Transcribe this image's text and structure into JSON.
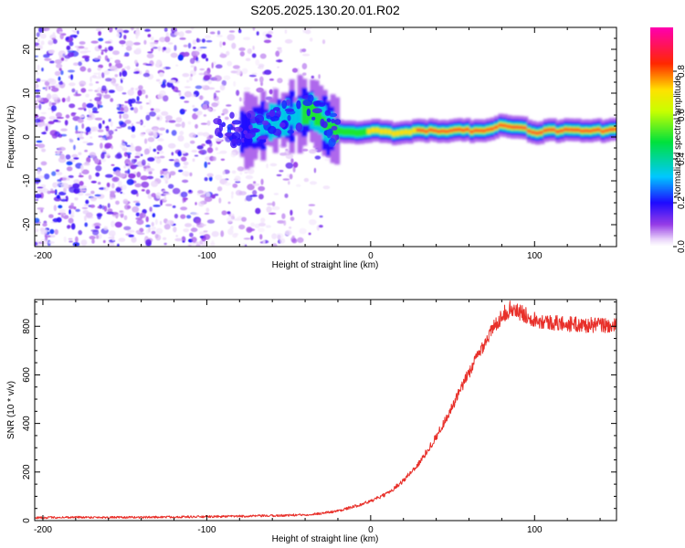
{
  "figure_title": "S205.2025.130.20.01.R02",
  "chart_data": [
    {
      "type": "heatmap",
      "xlabel": "Height of straight line (km)",
      "ylabel": "Frequency (Hz)",
      "xlim": [
        -205,
        150
      ],
      "ylim": [
        -25,
        25
      ],
      "xticks": [
        -200,
        -100,
        0,
        100
      ],
      "xtick_labels": [
        "-200",
        "-100",
        "0",
        "100"
      ],
      "yticks": [
        -20,
        -10,
        0,
        10,
        20
      ],
      "ytick_labels": [
        "-20",
        "-10",
        "0",
        "10",
        "20"
      ],
      "grid": false,
      "colorbar": {
        "label": "Normalized spectral amplitude",
        "range": [
          0,
          1
        ],
        "ticks": [
          0.0,
          0.2,
          0.4,
          0.6,
          0.8
        ],
        "tick_labels": [
          "0.0",
          "0.2",
          "0.4",
          "0.6",
          "0.8"
        ],
        "colormap": "rainbow"
      },
      "noise_region": {
        "x": [
          -205,
          -25
        ],
        "y": [
          -25,
          25
        ]
      },
      "signal_band": [
        {
          "x": -75,
          "y": 1.5
        },
        {
          "x": -65,
          "y": 2.5
        },
        {
          "x": -55,
          "y": 4
        },
        {
          "x": -45,
          "y": 5
        },
        {
          "x": -35,
          "y": 6
        },
        {
          "x": -30,
          "y": 4
        },
        {
          "x": -25,
          "y": 2
        },
        {
          "x": -20,
          "y": 1.5
        },
        {
          "x": -10,
          "y": 1
        },
        {
          "x": 0,
          "y": 1.5
        },
        {
          "x": 10,
          "y": 1
        },
        {
          "x": 20,
          "y": 1
        },
        {
          "x": 30,
          "y": 1.5
        },
        {
          "x": 40,
          "y": 1.5
        },
        {
          "x": 50,
          "y": 1.5
        },
        {
          "x": 60,
          "y": 1.5
        },
        {
          "x": 70,
          "y": 1.5
        },
        {
          "x": 80,
          "y": 2.5
        },
        {
          "x": 90,
          "y": 2.5
        },
        {
          "x": 100,
          "y": 1
        },
        {
          "x": 110,
          "y": 1.5
        },
        {
          "x": 120,
          "y": 1.5
        },
        {
          "x": 130,
          "y": 1.5
        },
        {
          "x": 140,
          "y": 1.5
        },
        {
          "x": 150,
          "y": 1.5
        }
      ]
    },
    {
      "type": "line",
      "xlabel": "Height of straight line (km)",
      "ylabel": "SNR (10 * v/v)",
      "xlim": [
        -205,
        150
      ],
      "ylim": [
        0,
        910
      ],
      "xticks": [
        -200,
        -100,
        0,
        100
      ],
      "xtick_labels": [
        "-200",
        "-100",
        "0",
        "100"
      ],
      "yticks": [
        0,
        200,
        400,
        600,
        800
      ],
      "ytick_labels": [
        "0",
        "200",
        "400",
        "600",
        "800"
      ],
      "grid": false,
      "series": [
        {
          "color": "#e8302a",
          "x": [
            -205,
            -180,
            -150,
            -120,
            -100,
            -80,
            -60,
            -40,
            -30,
            -20,
            -10,
            0,
            10,
            20,
            30,
            40,
            50,
            60,
            70,
            80,
            85,
            90,
            100,
            110,
            120,
            130,
            140,
            150
          ],
          "y": [
            12,
            14,
            13,
            15,
            16,
            18,
            20,
            24,
            30,
            40,
            58,
            80,
            110,
            165,
            240,
            345,
            470,
            610,
            740,
            845,
            870,
            860,
            830,
            815,
            810,
            805,
            805,
            800
          ]
        }
      ]
    }
  ]
}
